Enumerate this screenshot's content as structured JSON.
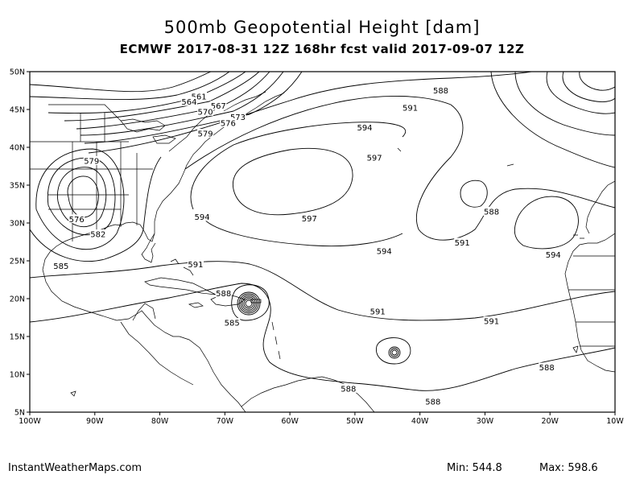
{
  "title": "500mb Geopotential Height [dam]",
  "subtitle": "ECMWF 2017-08-31 12Z 168hr fcst valid 2017-09-07 12Z",
  "footer": {
    "credit": "InstantWeatherMaps.com",
    "min_label": "Min:",
    "min_value": "544.8",
    "max_label": "Max:",
    "max_value": "598.6"
  },
  "map": {
    "lat_ticks": [
      "50N",
      "45N",
      "40N",
      "35N",
      "30N",
      "25N",
      "20N",
      "15N",
      "10N",
      "5N"
    ],
    "lon_ticks": [
      "100W",
      "90W",
      "80W",
      "70W",
      "60W",
      "50W",
      "40W",
      "30W",
      "20W",
      "10W"
    ],
    "contour_labels": [
      {
        "text": "561",
        "lon": -74.0,
        "lat": 46.7
      },
      {
        "text": "564",
        "lon": -75.5,
        "lat": 46.0
      },
      {
        "text": "567",
        "lon": -71.0,
        "lat": 45.5
      },
      {
        "text": "570",
        "lon": -73.0,
        "lat": 44.7
      },
      {
        "text": "573",
        "lon": -68.0,
        "lat": 44.0
      },
      {
        "text": "576",
        "lon": -69.5,
        "lat": 43.2
      },
      {
        "text": "579",
        "lon": -73.0,
        "lat": 41.8
      },
      {
        "text": "579",
        "lon": -90.5,
        "lat": 38.2
      },
      {
        "text": "576",
        "lon": -92.8,
        "lat": 30.5
      },
      {
        "text": "582",
        "lon": -89.5,
        "lat": 28.5
      },
      {
        "text": "585",
        "lon": -95.2,
        "lat": 24.3
      },
      {
        "text": "588",
        "lon": -70.2,
        "lat": 20.7
      },
      {
        "text": "585",
        "lon": -68.9,
        "lat": 16.8
      },
      {
        "text": "591",
        "lon": -74.5,
        "lat": 24.5
      },
      {
        "text": "594",
        "lon": -73.5,
        "lat": 30.8
      },
      {
        "text": "597",
        "lon": -57.0,
        "lat": 30.6
      },
      {
        "text": "597",
        "lon": -47.0,
        "lat": 38.6
      },
      {
        "text": "594",
        "lon": -48.5,
        "lat": 42.6
      },
      {
        "text": "594",
        "lon": -45.5,
        "lat": 26.3
      },
      {
        "text": "591",
        "lon": -41.5,
        "lat": 45.2
      },
      {
        "text": "588",
        "lon": -36.8,
        "lat": 47.5
      },
      {
        "text": "588",
        "lon": -29.0,
        "lat": 31.5
      },
      {
        "text": "591",
        "lon": -33.5,
        "lat": 27.4
      },
      {
        "text": "594",
        "lon": -19.5,
        "lat": 25.8
      },
      {
        "text": "591",
        "lon": -46.5,
        "lat": 18.3
      },
      {
        "text": "591",
        "lon": -29.0,
        "lat": 17.0
      },
      {
        "text": "588",
        "lon": -38.0,
        "lat": 6.4
      },
      {
        "text": "588",
        "lon": -51.0,
        "lat": 8.1
      },
      {
        "text": "588",
        "lon": -20.5,
        "lat": 10.9
      }
    ]
  }
}
